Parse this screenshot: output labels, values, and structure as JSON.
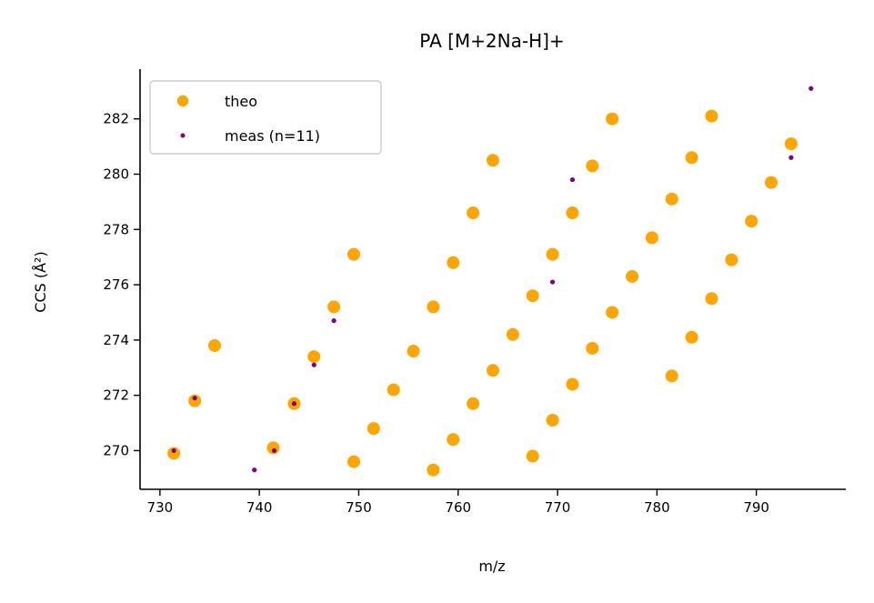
{
  "chart_data": {
    "type": "scatter",
    "title": "PA [M+2Na-H]+",
    "xlabel": "m/z",
    "ylabel": "CCS (Å²)",
    "xlim": [
      728,
      799
    ],
    "ylim": [
      268.6,
      283.8
    ],
    "xticks": [
      730,
      740,
      750,
      760,
      770,
      780,
      790
    ],
    "yticks": [
      270,
      272,
      274,
      276,
      278,
      280,
      282
    ],
    "grid": false,
    "legend_position": "top-left",
    "series": [
      {
        "name": "theo",
        "color": "#ffa500",
        "marker": "large-dot",
        "points": [
          [
            731.4,
            269.9
          ],
          [
            733.5,
            271.8
          ],
          [
            735.5,
            273.8
          ],
          [
            741.4,
            270.1
          ],
          [
            743.5,
            271.7
          ],
          [
            745.5,
            273.4
          ],
          [
            747.5,
            275.2
          ],
          [
            749.5,
            277.1
          ],
          [
            749.5,
            269.6
          ],
          [
            751.5,
            270.8
          ],
          [
            753.5,
            272.2
          ],
          [
            755.5,
            273.6
          ],
          [
            757.5,
            275.2
          ],
          [
            759.5,
            276.8
          ],
          [
            761.5,
            278.6
          ],
          [
            763.5,
            280.5
          ],
          [
            757.5,
            269.3
          ],
          [
            759.5,
            270.4
          ],
          [
            761.5,
            271.7
          ],
          [
            763.5,
            272.9
          ],
          [
            765.5,
            274.2
          ],
          [
            767.5,
            275.6
          ],
          [
            769.5,
            277.1
          ],
          [
            771.5,
            278.6
          ],
          [
            773.5,
            280.3
          ],
          [
            775.5,
            282.0
          ],
          [
            767.5,
            269.8
          ],
          [
            769.5,
            271.1
          ],
          [
            771.5,
            272.4
          ],
          [
            773.5,
            273.7
          ],
          [
            775.5,
            275.0
          ],
          [
            777.5,
            276.3
          ],
          [
            779.5,
            277.7
          ],
          [
            781.5,
            279.1
          ],
          [
            783.5,
            280.6
          ],
          [
            785.5,
            282.1
          ],
          [
            781.5,
            272.7
          ],
          [
            783.5,
            274.1
          ],
          [
            785.5,
            275.5
          ],
          [
            787.5,
            276.9
          ],
          [
            789.5,
            278.3
          ],
          [
            791.5,
            279.7
          ],
          [
            793.5,
            281.1
          ]
        ]
      },
      {
        "name": "meas (n=11)",
        "color": "#800080",
        "marker": "small-dot",
        "points": [
          [
            731.4,
            270.0
          ],
          [
            733.5,
            271.9
          ],
          [
            739.5,
            269.3
          ],
          [
            741.5,
            270.0
          ],
          [
            743.5,
            271.7
          ],
          [
            745.5,
            273.1
          ],
          [
            747.5,
            274.7
          ],
          [
            769.5,
            276.1
          ],
          [
            771.5,
            279.8
          ],
          [
            793.5,
            280.6
          ],
          [
            795.5,
            283.1
          ]
        ]
      }
    ]
  }
}
